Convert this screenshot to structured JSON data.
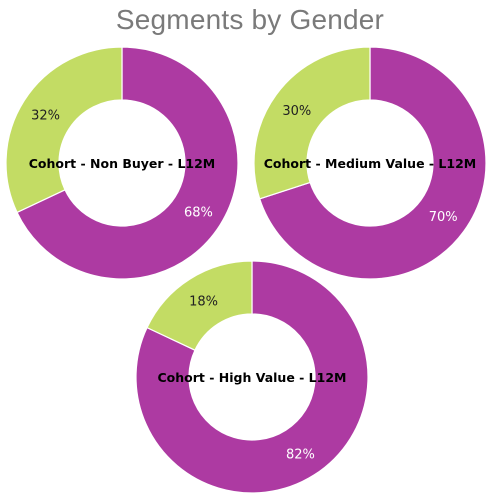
{
  "title": "Segments by Gender",
  "colors": {
    "primary_segment": "#ad3aa2",
    "secondary_segment": "#c3dc64",
    "title_text": "#7a7a7a",
    "inner_label_light": "#ffffff",
    "inner_label_dark": "#222222"
  },
  "chart_data": [
    {
      "type": "pie",
      "variant": "donut",
      "title": "Cohort - Non Buyer - L12M",
      "slices": [
        {
          "value": 68,
          "label": "68%",
          "color": "#ad3aa2"
        },
        {
          "value": 32,
          "label": "32%",
          "color": "#c3dc64"
        }
      ]
    },
    {
      "type": "pie",
      "variant": "donut",
      "title": "Cohort - Medium Value - L12M",
      "slices": [
        {
          "value": 70,
          "label": "70%",
          "color": "#ad3aa2"
        },
        {
          "value": 30,
          "label": "30%",
          "color": "#c3dc64"
        }
      ]
    },
    {
      "type": "pie",
      "variant": "donut",
      "title": "Cohort - High Value - L12M",
      "slices": [
        {
          "value": 82,
          "label": "82%",
          "color": "#ad3aa2"
        },
        {
          "value": 18,
          "label": "18%",
          "color": "#c3dc64"
        }
      ]
    }
  ]
}
